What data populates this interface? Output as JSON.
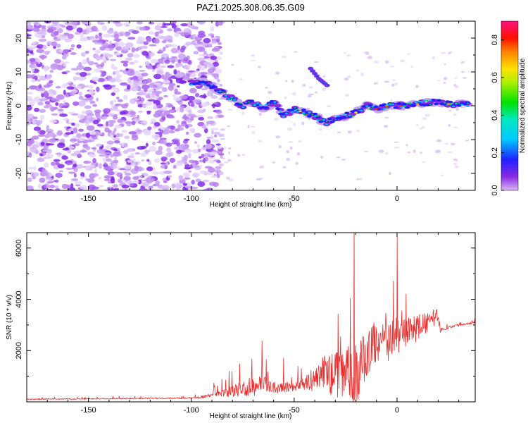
{
  "title": "PAZ1.2025.308.06.35.G09",
  "colors": {
    "line": "#e8302f",
    "frame": "#000000"
  },
  "chart_data": [
    {
      "type": "heatmap",
      "title": "PAZ1.2025.308.06.35.G09",
      "xlabel": "Height of straight line (km)",
      "ylabel": "Frequency (Hz)",
      "xlim": [
        -180,
        38
      ],
      "ylim": [
        -25,
        25
      ],
      "x_ticks": [
        -150,
        -100,
        -50,
        0
      ],
      "x_tick_labels": [
        "-150",
        "-100",
        "-50",
        "0"
      ],
      "y_ticks": [
        -20,
        -10,
        0,
        10,
        20
      ],
      "y_tick_labels": [
        "-20",
        "-10",
        "0",
        "10",
        "20"
      ],
      "ridge": {
        "x": [
          -100,
          -95,
          -90,
          -85,
          -80,
          -75,
          -70,
          -65,
          -60,
          -55,
          -50,
          -45,
          -40,
          -35,
          -30,
          -25,
          -20,
          -15,
          -10,
          -5,
          0,
          5,
          10,
          15,
          20,
          25,
          30,
          35
        ],
        "y": [
          7,
          7,
          6,
          4,
          2,
          0,
          1,
          -1,
          1,
          -3,
          -1,
          -2,
          -3,
          -5,
          -4,
          -3,
          -2,
          0,
          -1,
          0,
          0,
          0,
          0.5,
          1,
          1,
          0.5,
          0.5,
          0.5
        ]
      },
      "secondary_ridge": {
        "x": [
          -42,
          -38,
          -34
        ],
        "y": [
          11,
          8,
          6
        ]
      },
      "colorbar": {
        "label": "Normalized spectral amplitude",
        "range": [
          0,
          0.9
        ],
        "ticks": [
          0.0,
          0.2,
          0.4,
          0.6,
          0.8
        ],
        "tick_labels": [
          "0.0",
          "0.2",
          "0.4",
          "0.6",
          "0.8"
        ]
      }
    },
    {
      "type": "line",
      "xlabel": "Height of straight line (km)",
      "ylabel": "SNR (10 * v/v)",
      "xlim": [
        -180,
        38
      ],
      "ylim": [
        0,
        6600
      ],
      "x_ticks": [
        -150,
        -100,
        -50,
        0
      ],
      "x_tick_labels": [
        "-150",
        "-100",
        "-50",
        "0"
      ],
      "y_ticks": [
        2000,
        4000,
        6000
      ],
      "y_tick_labels": [
        "2000",
        "4000",
        "6000"
      ],
      "envelope": {
        "x": [
          -180,
          -100,
          -90,
          -80,
          -70,
          -65,
          -60,
          -55,
          -50,
          -45,
          -40,
          -35,
          -30,
          -25,
          -20,
          -15,
          -10,
          -5,
          0,
          5,
          10,
          15,
          20,
          21,
          25,
          30,
          38
        ],
        "base": [
          100,
          150,
          250,
          400,
          600,
          700,
          600,
          600,
          600,
          700,
          900,
          1200,
          1000,
          1200,
          1000,
          1800,
          2400,
          2200,
          2600,
          2700,
          2900,
          3100,
          3400,
          2800,
          2900,
          3000,
          3100
        ],
        "amp": [
          60,
          80,
          300,
          700,
          1400,
          1200,
          900,
          800,
          600,
          800,
          1700,
          2300,
          3300,
          3000,
          4600,
          3000,
          2800,
          2800,
          2400,
          1900,
          1800,
          1300,
          1000,
          300,
          200,
          150,
          150
        ]
      }
    }
  ]
}
